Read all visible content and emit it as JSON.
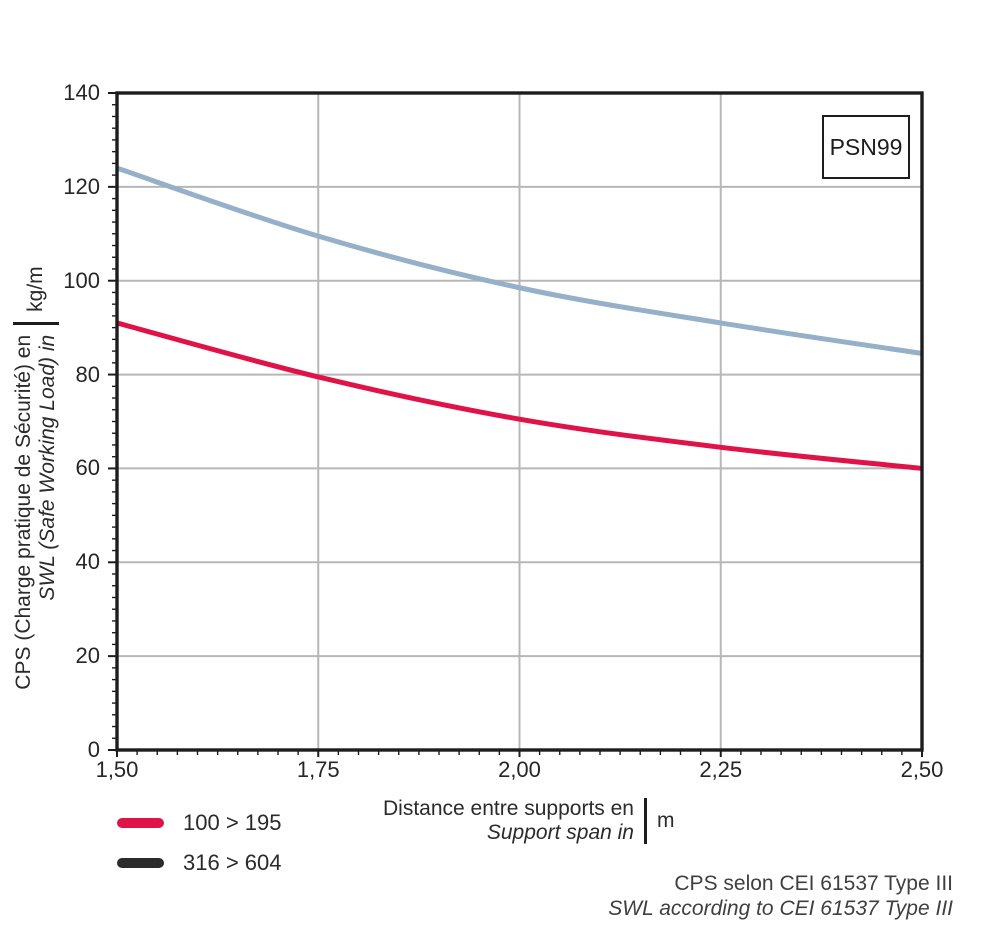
{
  "product_label": "PSN99",
  "legend": [
    {
      "label": "100 > 195",
      "color": "#e01349"
    },
    {
      "label": "316 > 604",
      "color": "#2b2b2b"
    }
  ],
  "footer": {
    "line1": "CPS selon CEI 61537 Type III",
    "line2": "SWL according to CEI 61537 Type III"
  },
  "colors": {
    "grid": "#b7b7b7",
    "frame": "#1d1d1d",
    "tick": "#1d1d1d",
    "curve_upper": "#95b0c8",
    "curve_lower": "#e01349"
  },
  "chart_data": {
    "type": "line",
    "x": [
      1.5,
      1.75,
      2.0,
      2.25,
      2.5
    ],
    "series": [
      {
        "name": "316 > 604",
        "color": "#95b0c8",
        "values": [
          124,
          109.5,
          98.5,
          91,
          84.5
        ]
      },
      {
        "name": "100 > 195",
        "color": "#e01349",
        "values": [
          91,
          79.5,
          70.5,
          64.5,
          60
        ]
      }
    ],
    "xlim": [
      1.5,
      2.5
    ],
    "ylim": [
      0,
      140
    ],
    "grid": true,
    "legend_position": "bottom-left",
    "xlabel": "Distance entre supports en",
    "xlabel_translation": "Support span in",
    "x_unit": "m",
    "ylabel": "CPS (Charge pratique de Sécurité) en",
    "ylabel_translation": "SWL (Safe Working Load) in",
    "y_unit": "kg/m",
    "x_ticks": [
      {
        "label": "1,50",
        "value": 1.5
      },
      {
        "label": "1,75",
        "value": 1.75
      },
      {
        "label": "2,00",
        "value": 2.0
      },
      {
        "label": "2,25",
        "value": 2.25
      },
      {
        "label": "2,50",
        "value": 2.5
      }
    ],
    "y_ticks": [
      {
        "label": "0",
        "value": 0
      },
      {
        "label": "20",
        "value": 20
      },
      {
        "label": "40",
        "value": 40
      },
      {
        "label": "60",
        "value": 60
      },
      {
        "label": "80",
        "value": 80
      },
      {
        "label": "100",
        "value": 100
      },
      {
        "label": "120",
        "value": 120
      },
      {
        "label": "140",
        "value": 140
      }
    ],
    "x_minor_step": 0.025,
    "y_minor_step": 2.5
  }
}
